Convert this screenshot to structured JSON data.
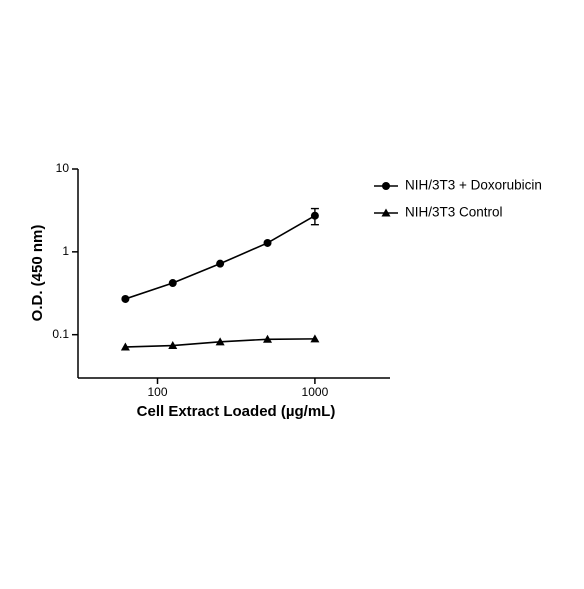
{
  "chart_data": {
    "type": "line",
    "x_label": "Cell Extract Loaded (µg/mL)",
    "y_label": "O.D. (450 nm)",
    "x": [
      62.5,
      125,
      250,
      500,
      1000
    ],
    "series": [
      {
        "name": "NIH/3T3 + Doxorubicin",
        "color": "#000000",
        "marker": "circle",
        "values": [
          0.27,
          0.42,
          0.72,
          1.28,
          2.73
        ],
        "errors": [
          null,
          null,
          null,
          null,
          0.6
        ]
      },
      {
        "name": "NIH/3T3 Control",
        "color": "#000000",
        "marker": "triangle",
        "values": [
          0.071,
          0.074,
          0.082,
          0.088,
          0.089
        ]
      }
    ],
    "xlim": [
      31.25,
      3000
    ],
    "xticks": [
      100,
      1000
    ],
    "xscale": "log",
    "ylim": [
      0.03,
      10
    ],
    "yticks": [
      10,
      1,
      0.1
    ],
    "yscale": "log",
    "grid": false,
    "legend": "right"
  }
}
